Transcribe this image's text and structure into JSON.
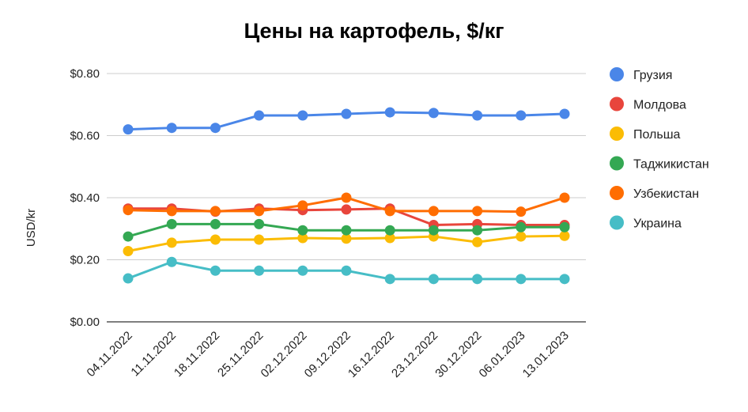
{
  "chart_data": {
    "type": "line",
    "title": "Цены на картофель, $/кг",
    "xlabel": "",
    "ylabel": "USD/kr",
    "ylim": [
      0,
      0.8
    ],
    "yticks": [
      "$0.00",
      "$0.20",
      "$0.40",
      "$0.60",
      "$0.80"
    ],
    "ytick_values": [
      0,
      0.2,
      0.4,
      0.6,
      0.8
    ],
    "grid": true,
    "legend_position": "right",
    "categories": [
      "04.11.2022",
      "11.11.2022",
      "18.11.2022",
      "25.11.2022",
      "02.12.2022",
      "09.12.2022",
      "16.12.2022",
      "23.12.2022",
      "30.12.2022",
      "06.01.2023",
      "13.01.2023"
    ],
    "series": [
      {
        "name": "Грузия",
        "color": "#4a86e8",
        "values": [
          0.62,
          0.625,
          0.625,
          0.665,
          0.665,
          0.67,
          0.675,
          0.673,
          0.665,
          0.665,
          0.67
        ]
      },
      {
        "name": "Молдова",
        "color": "#e8453c",
        "values": [
          0.365,
          0.365,
          0.355,
          0.365,
          0.36,
          0.362,
          0.365,
          0.312,
          0.315,
          0.312,
          0.312
        ]
      },
      {
        "name": "Польша",
        "color": "#fbbc04",
        "values": [
          0.228,
          0.255,
          0.265,
          0.265,
          0.27,
          0.268,
          0.27,
          0.275,
          0.257,
          0.275,
          0.277
        ]
      },
      {
        "name": "Таджикистан",
        "color": "#34a853",
        "values": [
          0.275,
          0.315,
          0.315,
          0.315,
          0.295,
          0.295,
          0.295,
          0.295,
          0.295,
          0.305,
          0.305
        ]
      },
      {
        "name": "Узбекистан",
        "color": "#ff6d01",
        "values": [
          0.36,
          0.357,
          0.357,
          0.357,
          0.375,
          0.4,
          0.357,
          0.357,
          0.357,
          0.355,
          0.4
        ]
      },
      {
        "name": "Украина",
        "color": "#46bdc6",
        "values": [
          0.14,
          0.193,
          0.165,
          0.165,
          0.165,
          0.165,
          0.138,
          0.138,
          0.138,
          0.138,
          0.138
        ]
      }
    ]
  }
}
